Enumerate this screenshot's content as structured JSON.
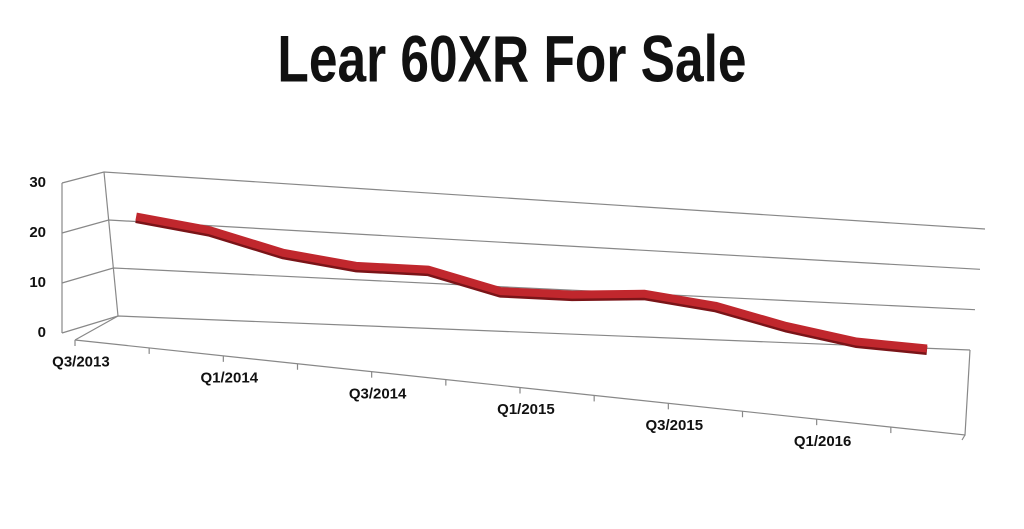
{
  "chart_data": {
    "type": "line",
    "title": "Lear 60XR For Sale",
    "categories": [
      "Q3/2013",
      null,
      "Q1/2014",
      null,
      "Q3/2014",
      null,
      "Q1/2015",
      null,
      "Q3/2015",
      null,
      "Q1/2016",
      null
    ],
    "values": [
      22,
      20,
      16,
      14,
      14,
      10,
      10,
      11,
      9,
      5,
      2,
      1
    ],
    "color": "#c0272d",
    "ylim": [
      0,
      30
    ],
    "yticks": [
      0,
      10,
      20,
      30
    ],
    "grid": true
  }
}
